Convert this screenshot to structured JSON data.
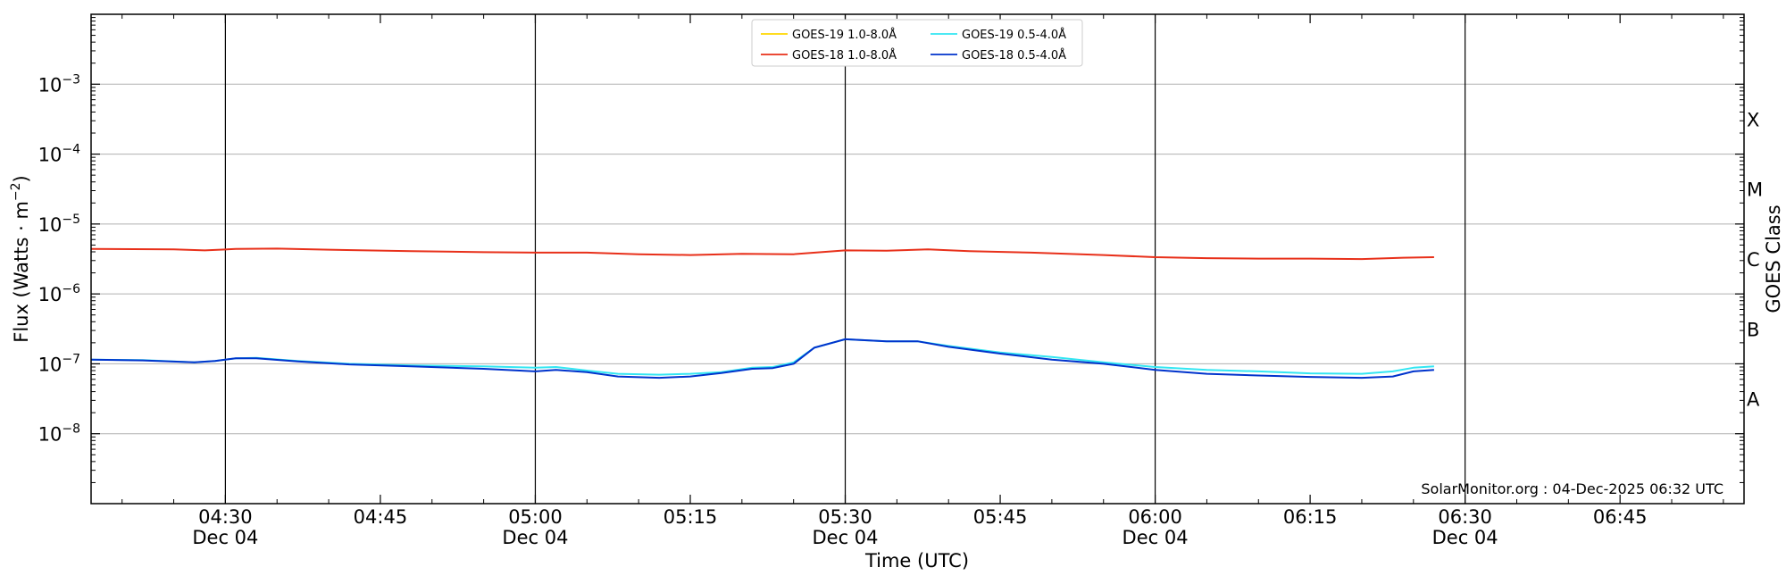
{
  "chart_data": {
    "type": "line",
    "title": "",
    "xlabel": "Time (UTC)",
    "ylabel": "Flux (Watts · m⁻²)",
    "y_scale": "log",
    "ylim": [
      1e-09,
      0.01
    ],
    "xlim": [
      "2025-12-04 04:17",
      "2025-12-04 06:57"
    ],
    "grid": "horizontal",
    "legend_position": "top-center",
    "y_ticks": [
      {
        "value": 1e-08,
        "base": "10",
        "exp": "−8"
      },
      {
        "value": 1e-07,
        "base": "10",
        "exp": "−7"
      },
      {
        "value": 1e-06,
        "base": "10",
        "exp": "−6"
      },
      {
        "value": 1e-05,
        "base": "10",
        "exp": "−5"
      },
      {
        "value": 0.0001,
        "base": "10",
        "exp": "−4"
      },
      {
        "value": 0.001,
        "base": "10",
        "exp": "−3"
      }
    ],
    "x_ticks": [
      {
        "time": "04:30",
        "label": "04:30",
        "date": "Dec 04"
      },
      {
        "time": "04:45",
        "label": "04:45",
        "date": ""
      },
      {
        "time": "05:00",
        "label": "05:00",
        "date": "Dec 04"
      },
      {
        "time": "05:15",
        "label": "05:15",
        "date": ""
      },
      {
        "time": "05:30",
        "label": "05:30",
        "date": "Dec 04"
      },
      {
        "time": "05:45",
        "label": "05:45",
        "date": ""
      },
      {
        "time": "06:00",
        "label": "06:00",
        "date": "Dec 04"
      },
      {
        "time": "06:15",
        "label": "06:15",
        "date": ""
      },
      {
        "time": "06:30",
        "label": "06:30",
        "date": "Dec 04"
      },
      {
        "time": "06:45",
        "label": "06:45",
        "date": ""
      }
    ],
    "vertical_lines": [
      "04:30",
      "05:00",
      "05:30",
      "06:00",
      "06:30"
    ],
    "right_axis": {
      "label": "GOES Class",
      "classes": [
        {
          "label": "A",
          "flux": 3.16e-08
        },
        {
          "label": "B",
          "flux": 3.16e-07
        },
        {
          "label": "C",
          "flux": 3.16e-06
        },
        {
          "label": "M",
          "flux": 3.16e-05
        },
        {
          "label": "X",
          "flux": 0.000316
        }
      ]
    },
    "series": [
      {
        "name": "GOES-19 1.0-8.0Å",
        "color": "#FFD700",
        "x": [],
        "values": []
      },
      {
        "name": "GOES-18 1.0-8.0Å",
        "color": "#E8301A",
        "x": [
          "04:17",
          "04:25",
          "04:28",
          "04:31",
          "04:35",
          "04:40",
          "04:48",
          "04:55",
          "05:00",
          "05:05",
          "05:10",
          "05:15",
          "05:20",
          "05:25",
          "05:30",
          "05:34",
          "05:38",
          "05:42",
          "05:48",
          "05:55",
          "06:00",
          "06:05",
          "06:10",
          "06:15",
          "06:20",
          "06:24",
          "06:27"
        ],
        "values": [
          4.4e-06,
          4.35e-06,
          4.2e-06,
          4.4e-06,
          4.45e-06,
          4.3e-06,
          4.1e-06,
          3.95e-06,
          3.9e-06,
          3.9e-06,
          3.7e-06,
          3.6e-06,
          3.75e-06,
          3.7e-06,
          4.2e-06,
          4.15e-06,
          4.35e-06,
          4.1e-06,
          3.9e-06,
          3.6e-06,
          3.35e-06,
          3.25e-06,
          3.2e-06,
          3.2e-06,
          3.15e-06,
          3.3e-06,
          3.35e-06
        ]
      },
      {
        "name": "GOES-19 0.5-4.0Å",
        "color": "#33E6F2",
        "x": [
          "04:17",
          "04:22",
          "04:27",
          "04:29",
          "04:31",
          "04:33",
          "04:37",
          "04:42",
          "04:48",
          "04:55",
          "05:00",
          "05:02",
          "05:05",
          "05:08",
          "05:12",
          "05:15",
          "05:18",
          "05:21",
          "05:23",
          "05:25",
          "05:27",
          "05:30",
          "05:34",
          "05:37",
          "05:40",
          "05:45",
          "05:50",
          "05:55",
          "06:00",
          "06:05",
          "06:10",
          "06:15",
          "06:20",
          "06:23",
          "06:25",
          "06:27"
        ],
        "values": [
          1.15e-07,
          1.13e-07,
          1.05e-07,
          1.1e-07,
          1.2e-07,
          1.22e-07,
          1.1e-07,
          1e-07,
          9.5e-08,
          9.2e-08,
          8.8e-08,
          9e-08,
          8e-08,
          7.2e-08,
          7e-08,
          7.2e-08,
          7.6e-08,
          8.8e-08,
          9e-08,
          1.05e-07,
          1.7e-07,
          2.25e-07,
          2.1e-07,
          2.1e-07,
          1.8e-07,
          1.45e-07,
          1.25e-07,
          1.05e-07,
          9e-08,
          8.2e-08,
          7.8e-08,
          7.3e-08,
          7.2e-08,
          7.8e-08,
          8.8e-08,
          9.2e-08
        ]
      },
      {
        "name": "GOES-18 0.5-4.0Å",
        "color": "#0033CC",
        "x": [
          "04:17",
          "04:22",
          "04:27",
          "04:29",
          "04:31",
          "04:33",
          "04:37",
          "04:42",
          "04:48",
          "04:55",
          "05:00",
          "05:02",
          "05:05",
          "05:08",
          "05:12",
          "05:15",
          "05:18",
          "05:21",
          "05:23",
          "05:25",
          "05:27",
          "05:30",
          "05:34",
          "05:37",
          "05:40",
          "05:45",
          "05:50",
          "05:55",
          "06:00",
          "06:05",
          "06:10",
          "06:15",
          "06:20",
          "06:23",
          "06:25",
          "06:27"
        ],
        "values": [
          1.15e-07,
          1.12e-07,
          1.05e-07,
          1.1e-07,
          1.2e-07,
          1.2e-07,
          1.08e-07,
          9.8e-08,
          9.2e-08,
          8.5e-08,
          7.8e-08,
          8.2e-08,
          7.6e-08,
          6.6e-08,
          6.3e-08,
          6.6e-08,
          7.4e-08,
          8.5e-08,
          8.7e-08,
          1e-07,
          1.7e-07,
          2.25e-07,
          2.1e-07,
          2.1e-07,
          1.75e-07,
          1.4e-07,
          1.15e-07,
          1e-07,
          8.2e-08,
          7.2e-08,
          6.8e-08,
          6.5e-08,
          6.3e-08,
          6.6e-08,
          7.8e-08,
          8.2e-08
        ]
      }
    ],
    "annotation": "SolarMonitor.org : 04-Dec-2025 06:32 UTC"
  }
}
